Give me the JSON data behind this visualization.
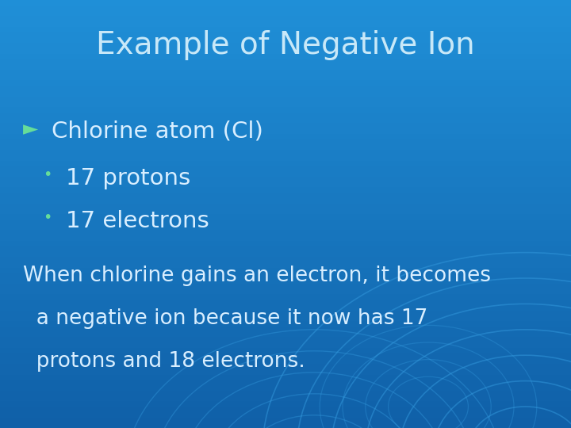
{
  "title": "Example of Negative Ion",
  "title_color": "#c8e8f8",
  "title_fontsize": 28,
  "bg_color_main": "#1878c8",
  "bg_color_light": "#2090d8",
  "bg_color_dark": "#1060a8",
  "arrow_bullet_color": "#66dd99",
  "bullet_text_color": "#d8eeff",
  "body_text_color": "#d8eeff",
  "arrow_char": "►",
  "line1": "Chlorine atom (Cl)",
  "bullet1": "17 protons",
  "bullet2": "17 electrons",
  "body_line1": "When chlorine gains an electron, it becomes",
  "body_line2": "  a negative ion because it now has 17",
  "body_line3": "  protons and 18 electrons.",
  "fontsize_body": 19,
  "fontsize_bullets": 21,
  "fontsize_arrow": 18
}
